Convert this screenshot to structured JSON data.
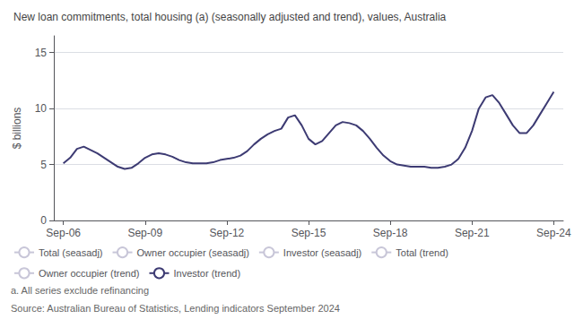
{
  "chart_data": {
    "type": "line",
    "title": "New loan commitments, total housing (a) (seasonally adjusted and trend), values, Australia",
    "ylabel": "$ billions",
    "annotations": [
      "a. All series exclude refinancing",
      "Source: Australian Bureau of Statistics, Lending indicators September 2024"
    ],
    "x": [
      2006.75,
      2007.0,
      2007.25,
      2007.5,
      2007.75,
      2008.0,
      2008.25,
      2008.5,
      2008.75,
      2009.0,
      2009.25,
      2009.5,
      2009.75,
      2010.0,
      2010.25,
      2010.5,
      2010.75,
      2011.0,
      2011.25,
      2011.5,
      2011.75,
      2012.0,
      2012.25,
      2012.5,
      2012.75,
      2013.0,
      2013.25,
      2013.5,
      2013.75,
      2014.0,
      2014.25,
      2014.5,
      2014.75,
      2015.0,
      2015.25,
      2015.5,
      2015.75,
      2016.0,
      2016.25,
      2016.5,
      2016.75,
      2017.0,
      2017.25,
      2017.5,
      2017.75,
      2018.0,
      2018.25,
      2018.5,
      2018.75,
      2019.0,
      2019.25,
      2019.5,
      2019.75,
      2020.0,
      2020.25,
      2020.5,
      2020.75,
      2021.0,
      2021.25,
      2021.5,
      2021.75,
      2022.0,
      2022.25,
      2022.5,
      2022.75,
      2023.0,
      2023.25,
      2023.5,
      2023.75,
      2024.0,
      2024.25,
      2024.5,
      2024.75
    ],
    "series": [
      {
        "name": "Total (seasadj)",
        "color": "#c8c6d8",
        "values": [
          null,
          null,
          null,
          null,
          null,
          null,
          null,
          null,
          null,
          null,
          null,
          null,
          null,
          null,
          null,
          null,
          null,
          null,
          null,
          null,
          null,
          null,
          null,
          null,
          null,
          null,
          null,
          null,
          null,
          null,
          null,
          null,
          null,
          null,
          null,
          null,
          null,
          null,
          null,
          null,
          null,
          null,
          null,
          null,
          null,
          null,
          null,
          null,
          null,
          null,
          null,
          null,
          null,
          null,
          null,
          null,
          null,
          null,
          null,
          null,
          null,
          null,
          null,
          null,
          null,
          null,
          null,
          null,
          null,
          null,
          null,
          null,
          null
        ]
      },
      {
        "name": "Owner occupier (seasadj)",
        "color": "#c8c6d8",
        "values": [
          null,
          null,
          null,
          null,
          null,
          null,
          null,
          null,
          null,
          null,
          null,
          null,
          null,
          null,
          null,
          null,
          null,
          null,
          null,
          null,
          null,
          null,
          null,
          null,
          null,
          null,
          null,
          null,
          null,
          null,
          null,
          null,
          null,
          null,
          null,
          null,
          null,
          null,
          null,
          null,
          null,
          null,
          null,
          null,
          null,
          null,
          null,
          null,
          null,
          null,
          null,
          null,
          null,
          null,
          null,
          null,
          null,
          null,
          null,
          null,
          null,
          null,
          null,
          null,
          null,
          null,
          null,
          null,
          null,
          null,
          null,
          null,
          null
        ]
      },
      {
        "name": "Investor (seasadj)",
        "color": "#c8c6d8",
        "values": [
          null,
          null,
          null,
          null,
          null,
          null,
          null,
          null,
          null,
          null,
          null,
          null,
          null,
          null,
          null,
          null,
          null,
          null,
          null,
          null,
          null,
          null,
          null,
          null,
          null,
          null,
          null,
          null,
          null,
          null,
          null,
          null,
          null,
          null,
          null,
          null,
          null,
          null,
          null,
          null,
          null,
          null,
          null,
          null,
          null,
          null,
          null,
          null,
          null,
          null,
          null,
          null,
          null,
          null,
          null,
          null,
          null,
          null,
          null,
          null,
          null,
          null,
          null,
          null,
          null,
          null,
          null,
          null,
          null,
          null,
          null,
          null,
          null
        ]
      },
      {
        "name": "Total (trend)",
        "color": "#c8c6d8",
        "values": [
          null,
          null,
          null,
          null,
          null,
          null,
          null,
          null,
          null,
          null,
          null,
          null,
          null,
          null,
          null,
          null,
          null,
          null,
          null,
          null,
          null,
          null,
          null,
          null,
          null,
          null,
          null,
          null,
          null,
          null,
          null,
          null,
          null,
          null,
          null,
          null,
          null,
          null,
          null,
          null,
          null,
          null,
          null,
          null,
          null,
          null,
          null,
          null,
          null,
          null,
          null,
          null,
          null,
          null,
          null,
          null,
          null,
          null,
          null,
          null,
          null,
          null,
          null,
          null,
          null,
          null,
          null,
          null,
          null,
          null,
          null,
          null,
          null
        ]
      },
      {
        "name": "Owner occupier (trend)",
        "color": "#c8c6d8",
        "values": [
          null,
          null,
          null,
          null,
          null,
          null,
          null,
          null,
          null,
          null,
          null,
          null,
          null,
          null,
          null,
          null,
          null,
          null,
          null,
          null,
          null,
          null,
          null,
          null,
          null,
          null,
          null,
          null,
          null,
          null,
          null,
          null,
          null,
          null,
          null,
          null,
          null,
          null,
          null,
          null,
          null,
          null,
          null,
          null,
          null,
          null,
          null,
          null,
          null,
          null,
          null,
          null,
          null,
          null,
          null,
          null,
          null,
          null,
          null,
          null,
          null,
          null,
          null,
          null,
          null,
          null,
          null,
          null,
          null,
          null,
          null,
          null,
          null
        ]
      },
      {
        "name": "Investor (trend)",
        "color": "#3d3b73",
        "values": [
          5.1,
          5.6,
          6.4,
          6.6,
          6.3,
          6.0,
          5.6,
          5.2,
          4.8,
          4.6,
          4.7,
          5.1,
          5.6,
          5.9,
          6.0,
          5.9,
          5.7,
          5.4,
          5.2,
          5.1,
          5.1,
          5.1,
          5.2,
          5.4,
          5.5,
          5.6,
          5.8,
          6.2,
          6.8,
          7.3,
          7.7,
          8.0,
          8.2,
          9.2,
          9.4,
          8.5,
          7.3,
          6.8,
          7.1,
          7.8,
          8.5,
          8.8,
          8.7,
          8.5,
          8.0,
          7.3,
          6.5,
          5.8,
          5.3,
          5.0,
          4.9,
          4.8,
          4.8,
          4.8,
          4.7,
          4.7,
          4.8,
          5.0,
          5.5,
          6.5,
          8.0,
          10.0,
          11.0,
          11.2,
          10.5,
          9.5,
          8.5,
          7.8,
          7.8,
          8.5,
          9.5,
          10.5,
          11.5
        ]
      }
    ],
    "xlim": [
      2006.4,
      2025.1
    ],
    "xticks": [
      {
        "value": 2006.75,
        "label": "Sep-06"
      },
      {
        "value": 2009.75,
        "label": "Sep-09"
      },
      {
        "value": 2012.75,
        "label": "Sep-12"
      },
      {
        "value": 2015.75,
        "label": "Sep-15"
      },
      {
        "value": 2018.75,
        "label": "Sep-18"
      },
      {
        "value": 2021.75,
        "label": "Sep-21"
      },
      {
        "value": 2024.75,
        "label": "Sep-24"
      }
    ],
    "ylim": [
      0,
      16.5
    ],
    "yticks": [
      0,
      5,
      10,
      15
    ],
    "grid": true,
    "legend": "bottom"
  }
}
